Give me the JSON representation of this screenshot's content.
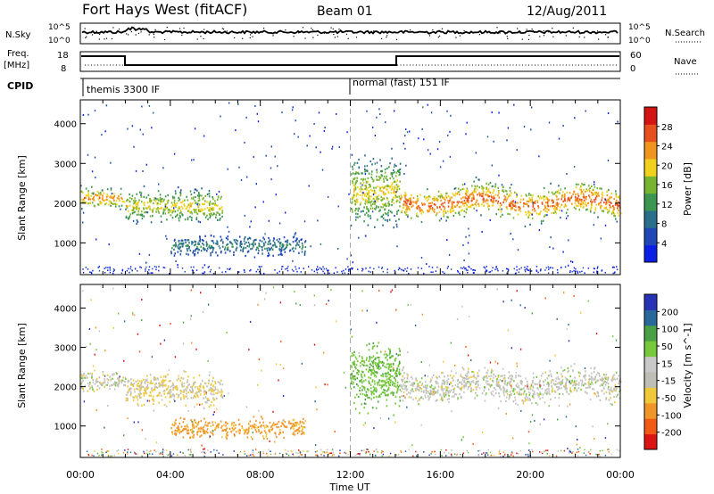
{
  "header": {
    "station": "Fort Hays West (fitACF)",
    "beam": "Beam 01",
    "date": "12/Aug/2011"
  },
  "strips": {
    "nsky_label": "N.Sky",
    "nsky_ticks": [
      "10^5",
      "10^0"
    ],
    "nsearch_label": "N.Search",
    "nsearch_ticks": [
      "10^5",
      "10^0"
    ],
    "freq_label_1": "Freq.",
    "freq_label_2": "[MHz]",
    "freq_ticks": [
      "18",
      "8"
    ],
    "nave_label": "Nave",
    "nave_ticks": [
      "60",
      "0"
    ],
    "cpid_label": "CPID",
    "cpid_segments": [
      {
        "label": "themis 3300 IF",
        "start_hour": 0
      },
      {
        "label": "normal (fast) 151 IF",
        "start_hour": 12.0
      }
    ]
  },
  "colors": {
    "power": [
      "#0a1ee6",
      "#1e46b4",
      "#2a6e8c",
      "#3c9650",
      "#78b432",
      "#f0d21e",
      "#f0961e",
      "#e6501e",
      "#d21414"
    ],
    "velocity": [
      "#dc1414",
      "#f05a14",
      "#f09628",
      "#f0c83c",
      "#bebeb4",
      "#c8c8c8",
      "#78c83c",
      "#4ba046",
      "#28689a",
      "#2832b4"
    ]
  },
  "chart_data": [
    {
      "type": "heatmap",
      "xlabel": "Time UT",
      "ylabel": "Slant Range [km]",
      "colorbar_label": "Power [dB]",
      "colorbar_ticks": [
        "28",
        "24",
        "20",
        "16",
        "12",
        "8",
        "4"
      ],
      "xlim": [
        0,
        24
      ],
      "ylim": [
        200,
        4600
      ],
      "yticks": [
        "4000",
        "3000",
        "2000",
        "1000"
      ],
      "xticks": [
        "00:00",
        "04:00",
        "08:00",
        "12:00",
        "16:00",
        "20:00",
        "00:00"
      ],
      "bands": [
        {
          "x": [
            0.0,
            2.0
          ],
          "y": [
            1800,
            2500
          ],
          "peak": 22
        },
        {
          "x": [
            2.0,
            6.3
          ],
          "y": [
            1400,
            2500
          ],
          "peak": 18
        },
        {
          "x": [
            4.0,
            10.0
          ],
          "y": [
            600,
            1300
          ],
          "peak": 10
        },
        {
          "x": [
            12.0,
            14.2
          ],
          "y": [
            1200,
            3400
          ],
          "peak": 18
        },
        {
          "x": [
            14.2,
            24.0
          ],
          "y": [
            1500,
            2600
          ],
          "peak": 24
        }
      ]
    },
    {
      "type": "heatmap",
      "xlabel": "Time UT",
      "ylabel": "Slant Range [km]",
      "colorbar_label": "Velocity [m s^-1]",
      "colorbar_ticks": [
        "200",
        "100",
        "50",
        "15",
        "-15",
        "-50",
        "-100",
        "-200"
      ],
      "xlim": [
        0,
        24
      ],
      "ylim": [
        200,
        4600
      ],
      "yticks": [
        "4000",
        "3000",
        "2000",
        "1000"
      ],
      "xticks": [
        "00:00",
        "04:00",
        "08:00",
        "12:00",
        "16:00",
        "20:00",
        "00:00"
      ],
      "bands": [
        {
          "x": [
            0.0,
            2.0
          ],
          "y": [
            1800,
            2500
          ],
          "velocity": 0
        },
        {
          "x": [
            2.0,
            6.3
          ],
          "y": [
            1400,
            2500
          ],
          "velocity": -15
        },
        {
          "x": [
            4.0,
            10.0
          ],
          "y": [
            600,
            1300
          ],
          "velocity": -60
        },
        {
          "x": [
            12.0,
            14.2
          ],
          "y": [
            1200,
            3400
          ],
          "velocity": 40
        },
        {
          "x": [
            14.2,
            24.0
          ],
          "y": [
            1500,
            2600
          ],
          "velocity": 0
        }
      ]
    }
  ]
}
